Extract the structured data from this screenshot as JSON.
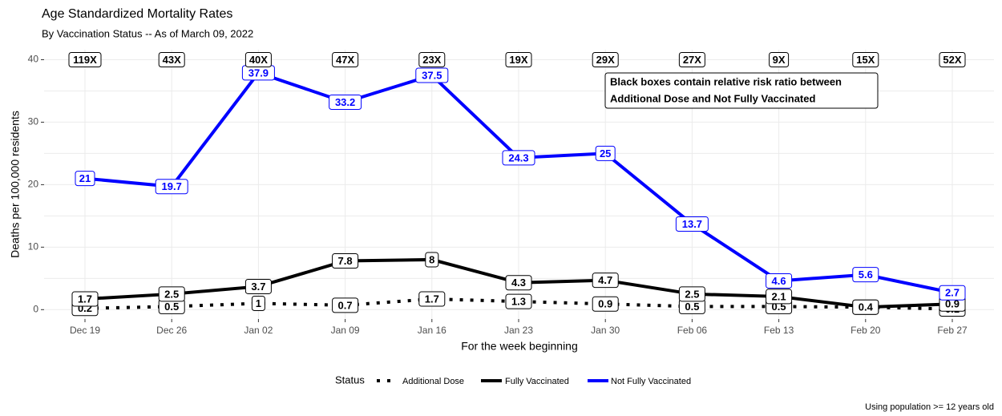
{
  "chart_data": {
    "type": "line",
    "title": "Age Standardized Mortality Rates",
    "subtitle": "By Vaccination Status -- As of March 09, 2022",
    "x_label": "For the week beginning",
    "y_label": "Deaths per 100,000 residents",
    "caption": "Using population >= 12 years old",
    "legend_title": "Status",
    "legend_position": "bottom",
    "grid": true,
    "categories": [
      "Dec 19",
      "Dec 26",
      "Jan 02",
      "Jan 09",
      "Jan 16",
      "Jan 23",
      "Jan 30",
      "Feb 06",
      "Feb 13",
      "Feb 20",
      "Feb 27"
    ],
    "ylim": [
      -1.5,
      41.6
    ],
    "yticks": [
      0,
      10,
      20,
      30,
      40
    ],
    "series": [
      {
        "name": "Additional Dose",
        "color": "#000000",
        "linestyle": "dotted",
        "values": [
          0.2,
          0.5,
          1,
          0.7,
          1.7,
          1.3,
          0.9,
          0.5,
          0.5,
          0.4,
          0.1
        ]
      },
      {
        "name": "Fully Vaccinated",
        "color": "#000000",
        "linestyle": "solid",
        "values": [
          1.7,
          2.5,
          3.7,
          7.8,
          8,
          4.3,
          4.7,
          2.5,
          2.1,
          0.4,
          0.9
        ]
      },
      {
        "name": "Not Fully Vaccinated",
        "color": "#0000ff",
        "linestyle": "solid",
        "values": [
          21,
          19.7,
          37.9,
          33.2,
          37.5,
          24.3,
          25,
          13.7,
          4.6,
          5.6,
          2.7
        ]
      }
    ],
    "ratio_y": 40,
    "ratio_labels": [
      "119X",
      "43X",
      "40X",
      "47X",
      "23X",
      "19X",
      "29X",
      "27X",
      "9X",
      "15X",
      "52X"
    ],
    "annotation": [
      "Black boxes contain relative risk ratio between",
      "Additional Dose and Not Fully Vaccinated"
    ]
  }
}
